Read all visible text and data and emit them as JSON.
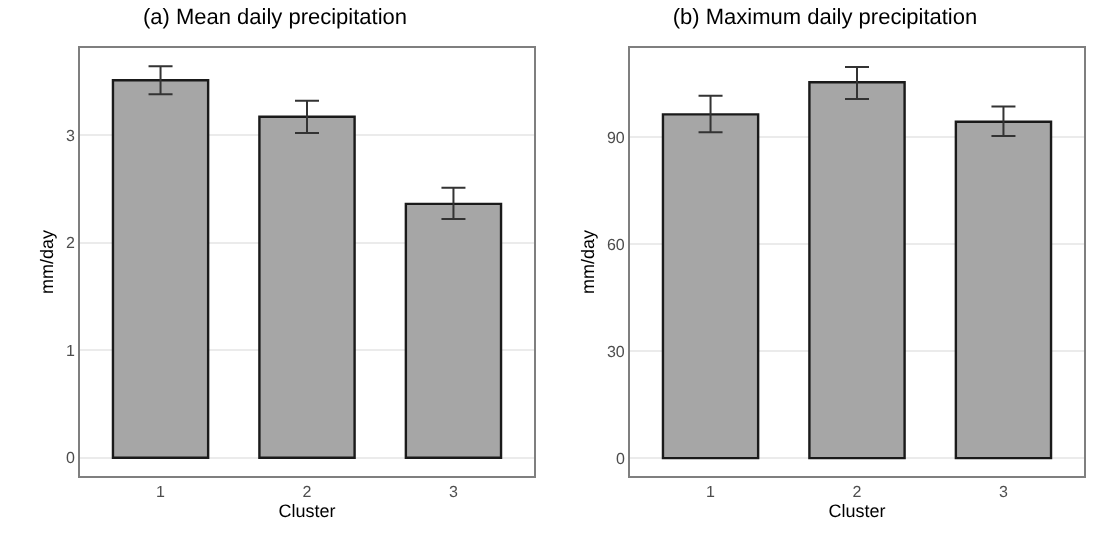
{
  "chart_data": [
    {
      "type": "bar",
      "title": "(a) Mean daily precipitation",
      "xlabel": "Cluster",
      "ylabel": "mm/day",
      "categories": [
        "1",
        "2",
        "3"
      ],
      "values": [
        3.51,
        3.17,
        2.36
      ],
      "errors": [
        [
          3.38,
          3.64
        ],
        [
          3.02,
          3.32
        ],
        [
          2.22,
          2.51
        ]
      ],
      "color": "#a6a6a6",
      "ylim": [
        -0.17,
        3.81
      ],
      "yticks": [
        0,
        1,
        2,
        3
      ],
      "grid": "y"
    },
    {
      "type": "bar",
      "title": "(b) Maximum daily precipitation",
      "xlabel": "Cluster",
      "ylabel": "mm/day",
      "categories": [
        "1",
        "2",
        "3"
      ],
      "values": [
        96.4,
        105.4,
        94.3
      ],
      "errors": [
        [
          91.4,
          101.6
        ],
        [
          100.7,
          109.7
        ],
        [
          90.3,
          98.6
        ]
      ],
      "color": "#a6a6a6",
      "ylim": [
        -5,
        115
      ],
      "yticks": [
        0,
        30,
        60,
        90
      ],
      "grid": "y"
    }
  ]
}
